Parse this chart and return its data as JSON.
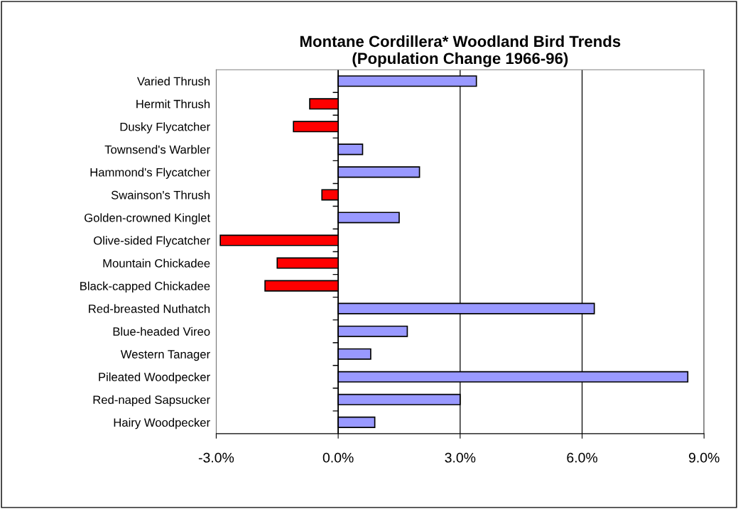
{
  "chart_data": {
    "type": "bar",
    "orientation": "horizontal",
    "title": "Montane Cordillera* Woodland Bird Trends\n(Population Change 1966-96)",
    "categories": [
      "Varied Thrush",
      "Hermit Thrush",
      "Dusky Flycatcher",
      "Townsend's Warbler",
      "Hammond's Flycatcher",
      "Swainson's Thrush",
      "Golden-crowned Kinglet",
      "Olive-sided Flycatcher",
      "Mountain Chickadee",
      "Black-capped Chickadee",
      "Red-breasted Nuthatch",
      "Blue-headed Vireo",
      "Western Tanager",
      "Pileated Woodpecker",
      "Red-naped Sapsucker",
      "Hairy Woodpecker"
    ],
    "values": [
      3.4,
      -0.7,
      -1.1,
      0.6,
      2.0,
      -0.4,
      1.5,
      -2.9,
      -1.5,
      -1.8,
      6.3,
      1.7,
      0.8,
      8.6,
      3.0,
      0.9
    ],
    "colors": [
      "#9999ff",
      "#ff0000",
      "#ff0000",
      "#9999ff",
      "#9999ff",
      "#ff0000",
      "#9999ff",
      "#ff0000",
      "#ff0000",
      "#ff0000",
      "#9999ff",
      "#9999ff",
      "#9999ff",
      "#9999ff",
      "#9999ff",
      "#9999ff"
    ],
    "xlim": [
      -3,
      9
    ],
    "xticks": [
      {
        "value": -3,
        "label": "-3.0%"
      },
      {
        "value": 0,
        "label": "0.0%"
      },
      {
        "value": 3,
        "label": "3.0%"
      },
      {
        "value": 6,
        "label": "6.0%"
      },
      {
        "value": 9,
        "label": "9.0%"
      }
    ],
    "grid": "x",
    "legend": false
  }
}
